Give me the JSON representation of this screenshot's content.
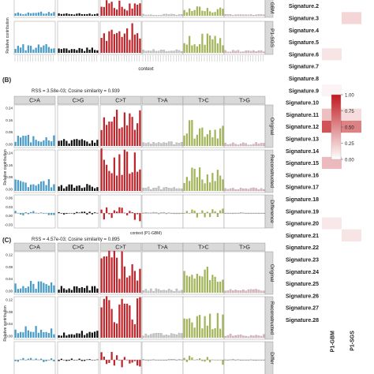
{
  "panels": {
    "B": {
      "label": "(B)",
      "stats": "RSS = 3.58e-03; Cosine similarity = 0.939",
      "xlabel": "context (P1-GBM)"
    },
    "C": {
      "label": "(C)",
      "stats": "RSS = 4.57e-03; Cosine similarity = 0.895"
    },
    "top_xlabel": "context",
    "ylabel": "Relative contribution"
  },
  "mutation_types": [
    "C>A",
    "C>G",
    "C>T",
    "T>A",
    "T>C",
    "T>G"
  ],
  "type_colors": [
    "#4a9cc8",
    "#111111",
    "#c0272d",
    "#c8c8c8",
    "#a3b55a",
    "#e7b6bf"
  ],
  "row_labels": {
    "top": [
      "GBM",
      "P1-SGS"
    ],
    "B": [
      "Original",
      "Reconstructed",
      "Difference"
    ],
    "C": [
      "Original",
      "Reconstructed",
      "Differ"
    ]
  },
  "y_ticks": {
    "B_top": [
      "0.24",
      "0.16",
      "0.08",
      "0.00"
    ],
    "B_diff": [
      "0.06",
      "0.03",
      "0.00",
      "-0.03"
    ],
    "C_top": [
      "0.12",
      "0.08",
      "0.04",
      "0.00"
    ]
  },
  "heatmap": {
    "signatures": [
      "Signature.2",
      "Signature.3",
      "Signature.4",
      "Signature.5",
      "Signature.6",
      "Signature.7",
      "Signature.8",
      "Signature.9",
      "Signature.10",
      "Signature.11",
      "Signature.12",
      "Signature.13",
      "Signature.14",
      "Signature.15",
      "Signature.16",
      "Signature.17",
      "Signature.18",
      "Signature.19",
      "Signature.20",
      "Signature.21",
      "Signature.22",
      "Signature.23",
      "Signature.24",
      "Signature.25",
      "Signature.26",
      "Signature.27",
      "Signature.28"
    ],
    "samples": [
      "P1-GBM",
      "P1-SGS"
    ],
    "legend_ticks": [
      "1.00",
      "0.75",
      "0.50",
      "0.25",
      "0.00"
    ]
  },
  "chart_data": {
    "type": "bar",
    "values_note": "",
    "heatmap_values": {
      "P1-GBM": [
        0,
        0,
        0,
        0,
        0.12,
        0,
        0,
        0.05,
        0,
        0.28,
        0.75,
        0,
        0,
        0.3,
        0,
        0,
        0,
        0,
        0.1,
        0,
        0,
        0,
        0,
        0,
        0,
        0,
        0
      ],
      "P1-SGS": [
        0,
        0.18,
        0,
        0,
        0,
        0,
        0,
        0,
        0,
        0.15,
        0.55,
        0,
        0,
        0,
        0,
        0,
        0,
        0,
        0,
        0.12,
        0,
        0,
        0,
        0,
        0,
        0,
        0
      ]
    }
  }
}
